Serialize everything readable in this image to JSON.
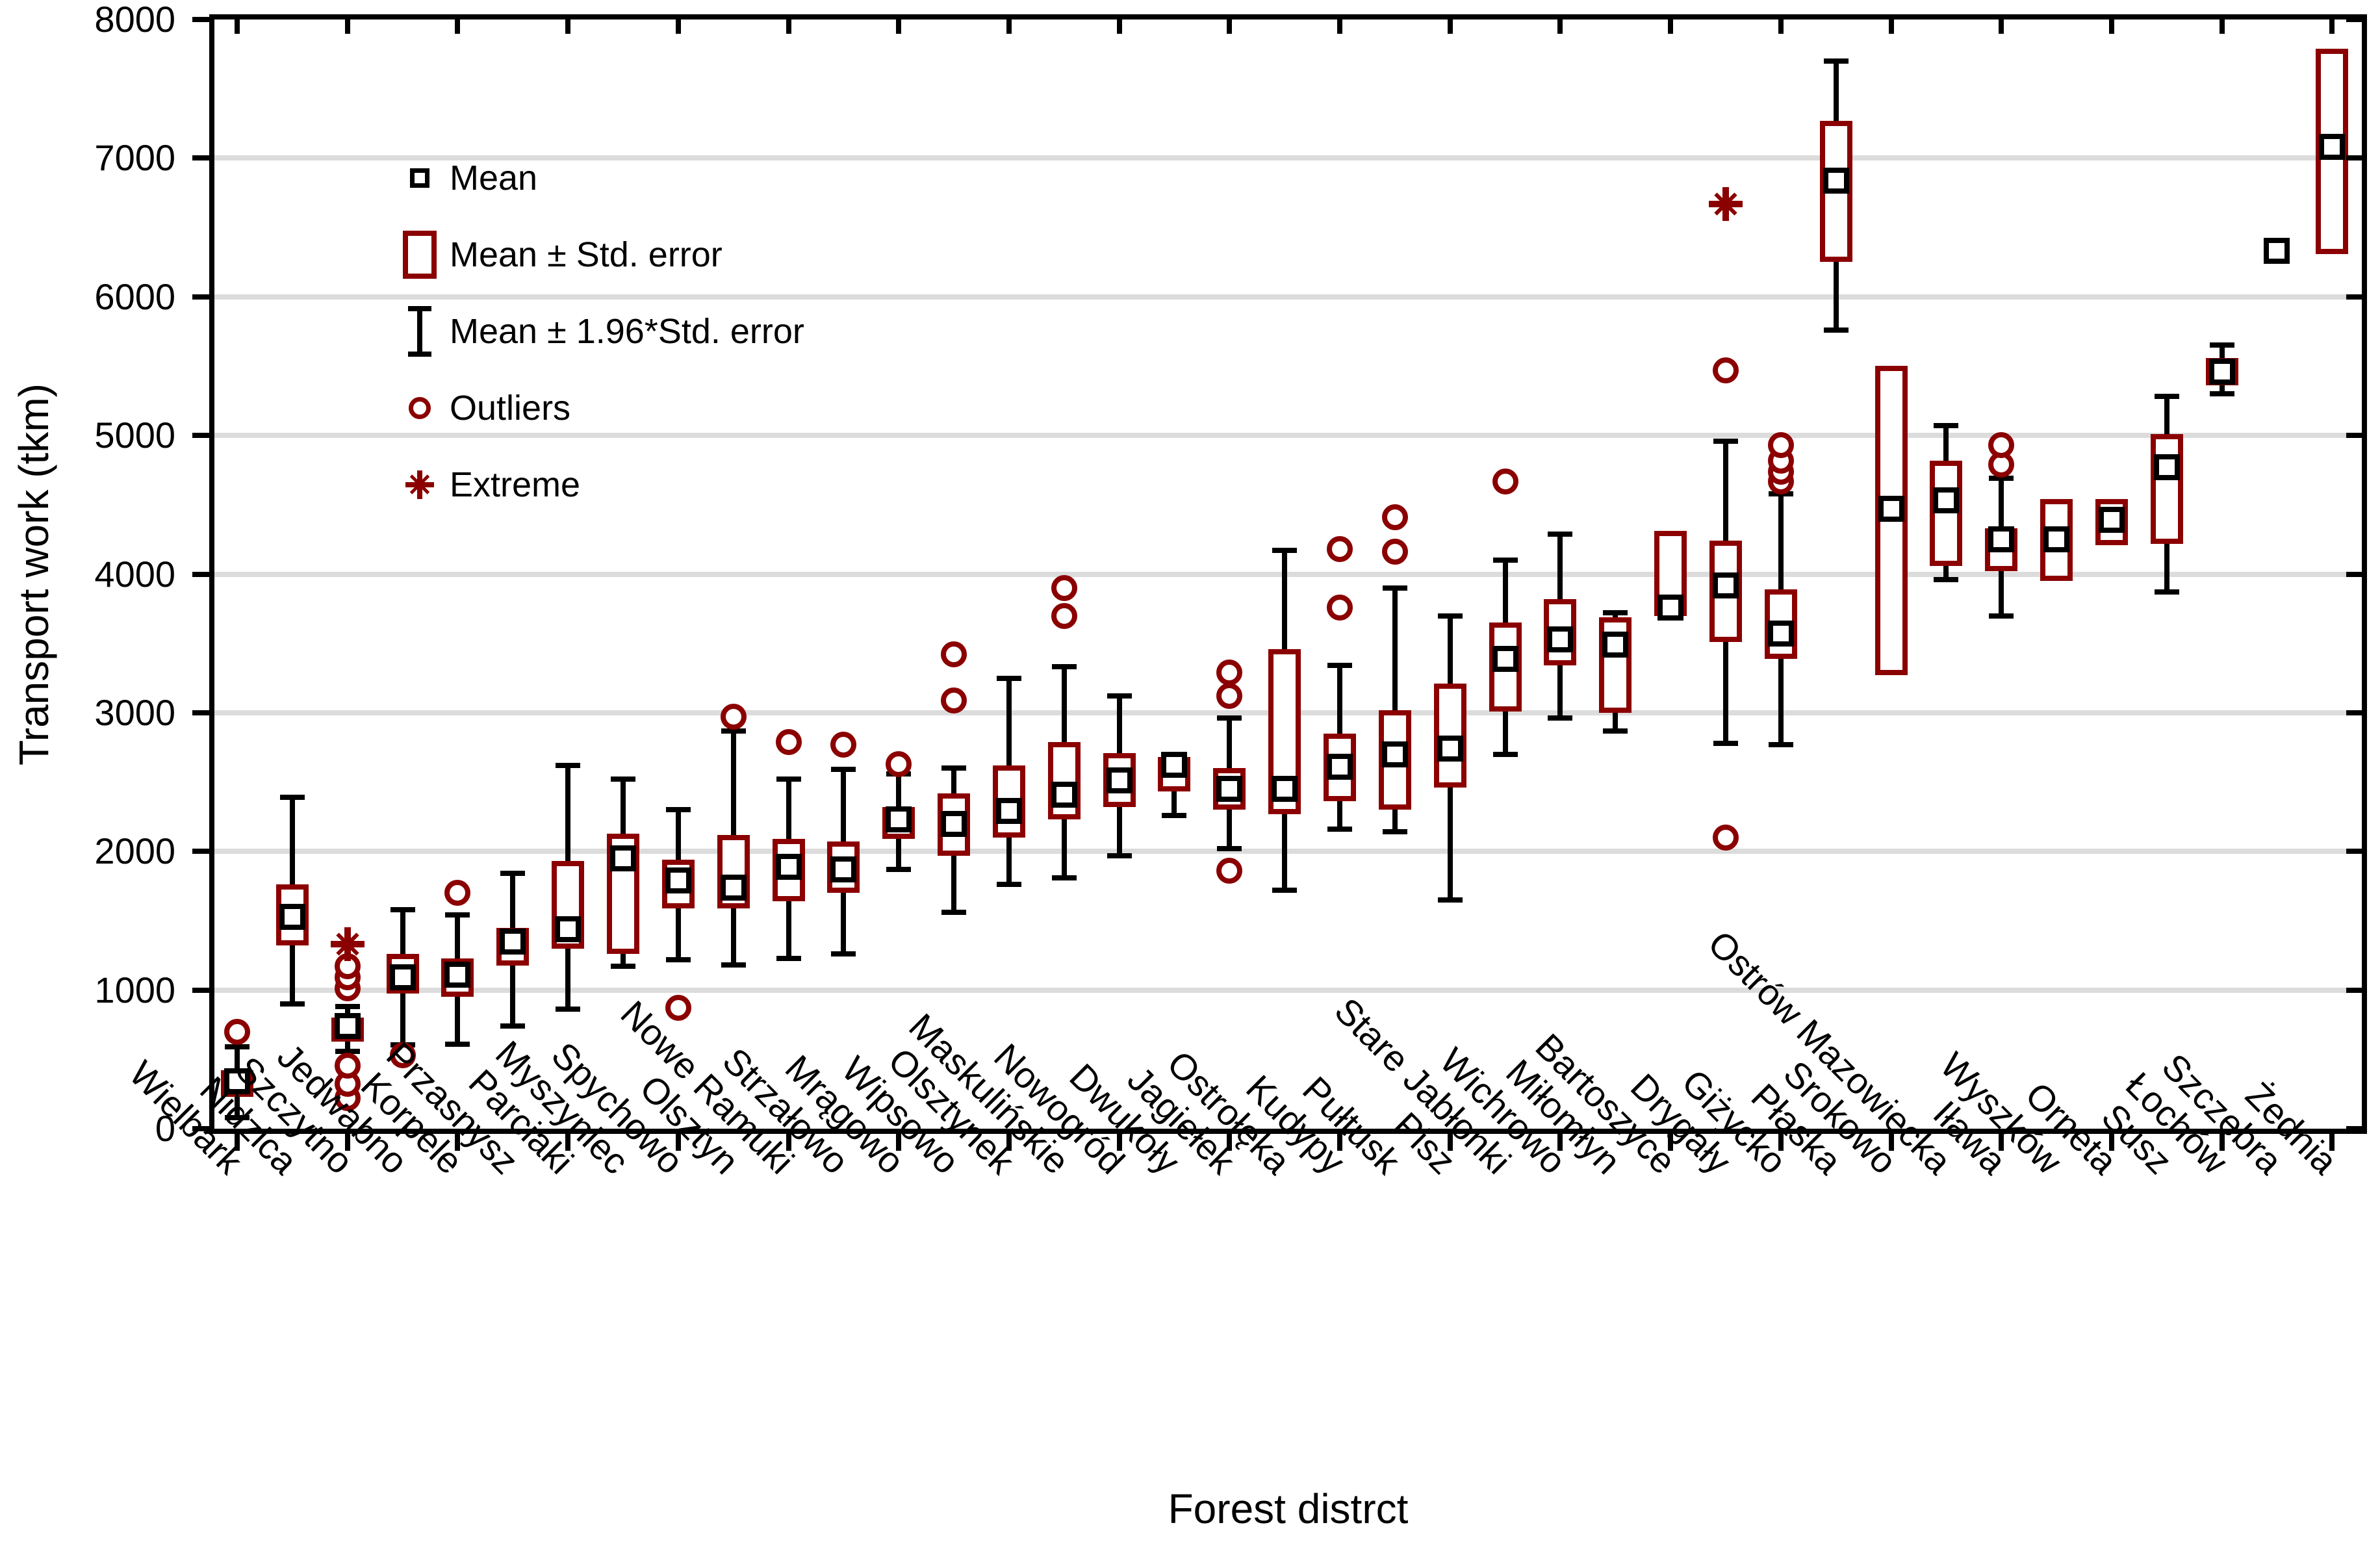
{
  "colors": {
    "accent": "#8B0000",
    "grid": "#DCDCDC",
    "axis": "#000000"
  },
  "legend": {
    "items": [
      {
        "label": "Mean",
        "symbol": "mean-square"
      },
      {
        "label": "Mean ± Std. error",
        "symbol": "stderr-box"
      },
      {
        "label": "Mean ±  1.96*Std. error",
        "symbol": "whisker"
      },
      {
        "label": "Outliers",
        "symbol": "outlier-circle"
      },
      {
        "label": "Extreme",
        "symbol": "extreme-star"
      }
    ]
  },
  "chart_data": {
    "type": "box",
    "title": "",
    "xlabel": "Forest distrct",
    "ylabel": "Transport work (tkm)",
    "ylim": [
      0,
      8000
    ],
    "ytick_step": 1000,
    "grid": "horizontal",
    "legend_position": "top-left-inside",
    "categories": [
      "Wielbark",
      "Nidzica",
      "Szczytno",
      "Jedwabno",
      "Korpele",
      "Przasnysz",
      "Parciaki",
      "Myszyniec",
      "Spychowo",
      "Olsztyn",
      "Nowe Ramuki",
      "Strzałowo",
      "Mrągowo",
      "Wipsowo",
      "Olsztynek",
      "Maskulińskie",
      "Nowogród",
      "Dwukoły",
      "Jagiełek",
      "Ostrołęka",
      "Kudypy",
      "Pułtusk",
      "Pisz",
      "Stare Jabłonki",
      "Wichrowo",
      "Miłomłyn",
      "Bartoszyce",
      "Drygały",
      "Giżycko",
      "Płaska",
      "Srokowo",
      "Ostrów Mazowiecka",
      "Iława",
      "Wyszków",
      "Orneta",
      "Susz",
      "Łochów",
      "Szczebra",
      "Żednia"
    ],
    "districts": [
      {
        "name": "Wielbark",
        "mean": 340,
        "box": [
          230,
          420
        ],
        "whisker": [
          80,
          590
        ],
        "outliers": [
          700
        ],
        "extremes": []
      },
      {
        "name": "Nidzica",
        "mean": 1530,
        "box": [
          1320,
          1760
        ],
        "whisker": [
          900,
          2390
        ],
        "outliers": [],
        "extremes": []
      },
      {
        "name": "Szczytno",
        "mean": 740,
        "box": [
          630,
          800
        ],
        "whisker": [
          560,
          880
        ],
        "outliers": [
          220,
          325,
          455,
          1010,
          1090,
          1170
        ],
        "extremes": [
          1330
        ]
      },
      {
        "name": "Jedwabno",
        "mean": 1090,
        "box": [
          975,
          1260
        ],
        "whisker": [
          605,
          1580
        ],
        "outliers": [
          530
        ],
        "extremes": []
      },
      {
        "name": "Korpele",
        "mean": 1110,
        "box": [
          950,
          1230
        ],
        "whisker": [
          610,
          1540
        ],
        "outliers": [
          1700
        ],
        "extremes": []
      },
      {
        "name": "Przasnysz",
        "mean": 1350,
        "box": [
          1175,
          1450
        ],
        "whisker": [
          740,
          1840
        ],
        "outliers": [],
        "extremes": []
      },
      {
        "name": "Parciaki",
        "mean": 1440,
        "box": [
          1300,
          1930
        ],
        "whisker": [
          860,
          2620
        ],
        "outliers": [],
        "extremes": []
      },
      {
        "name": "Myszyniec",
        "mean": 1950,
        "box": [
          1260,
          2130
        ],
        "whisker": [
          1170,
          2520
        ],
        "outliers": [],
        "extremes": []
      },
      {
        "name": "Spychowo",
        "mean": 1790,
        "box": [
          1590,
          1940
        ],
        "whisker": [
          1220,
          2300
        ],
        "outliers": [
          870
        ],
        "extremes": []
      },
      {
        "name": "Olsztyn",
        "mean": 1740,
        "box": [
          1590,
          2120
        ],
        "whisker": [
          1180,
          2870
        ],
        "outliers": [
          2970
        ],
        "extremes": []
      },
      {
        "name": "Nowe Ramuki",
        "mean": 1890,
        "box": [
          1640,
          2090
        ],
        "whisker": [
          1230,
          2520
        ],
        "outliers": [
          2790
        ],
        "extremes": []
      },
      {
        "name": "Strzałowo",
        "mean": 1870,
        "box": [
          1700,
          2070
        ],
        "whisker": [
          1260,
          2590
        ],
        "outliers": [
          2770
        ],
        "extremes": []
      },
      {
        "name": "Mrągowo",
        "mean": 2230,
        "box": [
          2090,
          2320
        ],
        "whisker": [
          1870,
          2560
        ],
        "outliers": [
          2630
        ],
        "extremes": []
      },
      {
        "name": "Wipsowo",
        "mean": 2200,
        "box": [
          1970,
          2420
        ],
        "whisker": [
          1560,
          2600
        ],
        "outliers": [
          3090,
          3420
        ],
        "extremes": []
      },
      {
        "name": "Olsztynek",
        "mean": 2290,
        "box": [
          2100,
          2620
        ],
        "whisker": [
          1760,
          3250
        ],
        "outliers": [],
        "extremes": []
      },
      {
        "name": "Maskulińskie",
        "mean": 2410,
        "box": [
          2230,
          2790
        ],
        "whisker": [
          1810,
          3330
        ],
        "outliers": [
          3700,
          3900
        ],
        "extremes": []
      },
      {
        "name": "Nowogród",
        "mean": 2510,
        "box": [
          2320,
          2710
        ],
        "whisker": [
          1970,
          3120
        ],
        "outliers": [],
        "extremes": []
      },
      {
        "name": "Dwukoły",
        "mean": 2625,
        "box": [
          2430,
          2680
        ],
        "whisker": [
          2260,
          2680
        ],
        "outliers": [],
        "extremes": []
      },
      {
        "name": "Jagiełek",
        "mean": 2450,
        "box": [
          2300,
          2600
        ],
        "whisker": [
          2020,
          2960
        ],
        "outliers": [
          1860,
          3120,
          3290
        ],
        "extremes": []
      },
      {
        "name": "Ostrołęka",
        "mean": 2450,
        "box": [
          2270,
          3460
        ],
        "whisker": [
          1720,
          4170
        ],
        "outliers": [],
        "extremes": []
      },
      {
        "name": "Kudypy",
        "mean": 2610,
        "box": [
          2360,
          2850
        ],
        "whisker": [
          2160,
          3340
        ],
        "outliers": [
          3760,
          4180
        ],
        "extremes": []
      },
      {
        "name": "Pułtusk",
        "mean": 2700,
        "box": [
          2300,
          3020
        ],
        "whisker": [
          2140,
          3900
        ],
        "outliers": [
          4160,
          4410
        ],
        "extremes": []
      },
      {
        "name": "Pisz",
        "mean": 2740,
        "box": [
          2460,
          3210
        ],
        "whisker": [
          1650,
          3700
        ],
        "outliers": [],
        "extremes": []
      },
      {
        "name": "Stare Jabłonki",
        "mean": 3390,
        "box": [
          3010,
          3650
        ],
        "whisker": [
          2700,
          4100
        ],
        "outliers": [
          4670
        ],
        "extremes": []
      },
      {
        "name": "Wichrowo",
        "mean": 3530,
        "box": [
          3340,
          3820
        ],
        "whisker": [
          2960,
          4290
        ],
        "outliers": [],
        "extremes": []
      },
      {
        "name": "Miłomłyn",
        "mean": 3490,
        "box": [
          3000,
          3690
        ],
        "whisker": [
          2870,
          3720
        ],
        "outliers": [],
        "extremes": []
      },
      {
        "name": "Bartoszyce",
        "mean": 3760,
        "box": [
          3700,
          4310
        ],
        "whisker": null,
        "outliers": [],
        "extremes": []
      },
      {
        "name": "Drygały",
        "mean": 3920,
        "box": [
          3510,
          4240
        ],
        "whisker": [
          2780,
          4960
        ],
        "outliers": [
          2100,
          5470
        ],
        "extremes": [
          6670
        ]
      },
      {
        "name": "Giżycko",
        "mean": 3570,
        "box": [
          3390,
          3890
        ],
        "whisker": [
          2770,
          4580
        ],
        "outliers": [
          4670,
          4740,
          4820,
          4930
        ],
        "extremes": []
      },
      {
        "name": "Płaska",
        "mean": 6840,
        "box": [
          6250,
          7270
        ],
        "whisker": [
          5760,
          7700
        ],
        "outliers": [],
        "extremes": []
      },
      {
        "name": "Srokowo",
        "mean": 4470,
        "box": [
          3270,
          5500
        ],
        "whisker": null,
        "outliers": [],
        "extremes": []
      },
      {
        "name": "Ostrów Mazowiecka",
        "mean": 4530,
        "box": [
          4060,
          4820
        ],
        "whisker": [
          3960,
          5070
        ],
        "outliers": [],
        "extremes": []
      },
      {
        "name": "Iława",
        "mean": 4250,
        "box": [
          4020,
          4330
        ],
        "whisker": [
          3700,
          4690
        ],
        "outliers": [
          4790,
          4930
        ],
        "extremes": []
      },
      {
        "name": "Wyszków",
        "mean": 4250,
        "box": [
          3950,
          4540
        ],
        "whisker": null,
        "outliers": [],
        "extremes": []
      },
      {
        "name": "Orneta",
        "mean": 4390,
        "box": [
          4210,
          4540
        ],
        "whisker": null,
        "outliers": [],
        "extremes": []
      },
      {
        "name": "Susz",
        "mean": 4770,
        "box": [
          4220,
          5010
        ],
        "whisker": [
          3870,
          5280
        ],
        "outliers": [],
        "extremes": []
      },
      {
        "name": "Łochów",
        "mean": 5460,
        "box": [
          5360,
          5560
        ],
        "whisker": [
          5300,
          5650
        ],
        "outliers": [],
        "extremes": []
      },
      {
        "name": "Szczebra",
        "mean": 6330,
        "box": null,
        "whisker": null,
        "outliers": [],
        "extremes": []
      },
      {
        "name": "Żednia",
        "mean": 7080,
        "box": [
          6310,
          7790
        ],
        "whisker": null,
        "outliers": [],
        "extremes": []
      }
    ]
  }
}
